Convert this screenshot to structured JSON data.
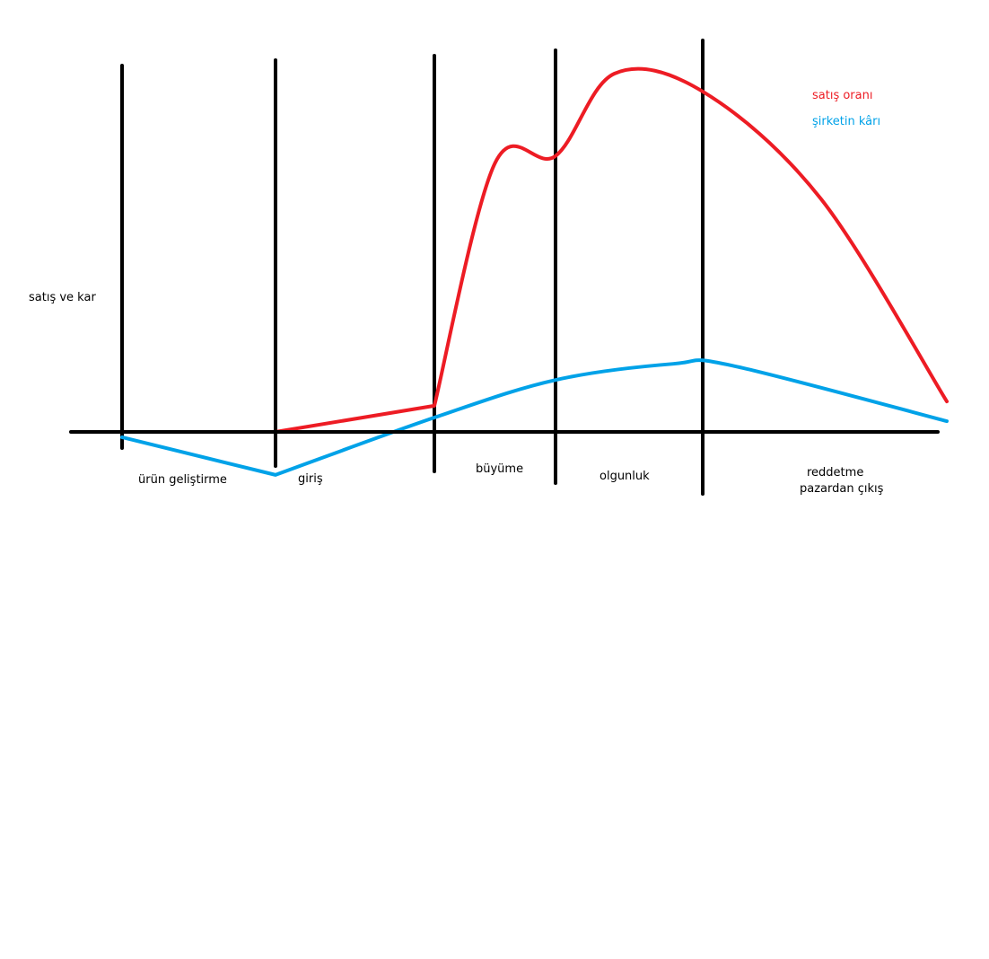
{
  "chart_data": {
    "type": "line",
    "ylabel": "satış ve kar",
    "stages": [
      {
        "name": "ürün geliştirme",
        "x_start": 0,
        "x_end": 1
      },
      {
        "name": "giriş",
        "x_start": 1,
        "x_end": 2
      },
      {
        "name": "büyüme",
        "x_start": 2,
        "x_end": 3
      },
      {
        "name": "olgunluk",
        "x_start": 3,
        "x_end": 4
      },
      {
        "name": "reddetme\npazardan çıkış",
        "x_start": 4,
        "x_end": 5.65
      }
    ],
    "boundaries": [
      0,
      1,
      2,
      3,
      4
    ],
    "series": [
      {
        "name": "satış oranı",
        "color": "#ed1c24",
        "points": [
          [
            1,
            0
          ],
          [
            2,
            0.73
          ],
          [
            2.5,
            7.5
          ],
          [
            3,
            7.7
          ],
          [
            3.4,
            10.0
          ],
          [
            4,
            9.5
          ],
          [
            4.8,
            6.5
          ],
          [
            5.65,
            0.85
          ]
        ]
      },
      {
        "name": "şirketin kârı",
        "color": "#00a2e8",
        "points": [
          [
            0,
            -0.15
          ],
          [
            1,
            -1.2
          ],
          [
            2,
            0.4
          ],
          [
            3,
            1.45
          ],
          [
            3.8,
            1.9
          ],
          [
            4.2,
            1.85
          ],
          [
            5.65,
            0.3
          ]
        ]
      }
    ],
    "xlim": [
      -0.35,
      5.65
    ],
    "ylim": [
      -1.2,
      10.0
    ],
    "legend_position": "top-right",
    "grid": false
  }
}
